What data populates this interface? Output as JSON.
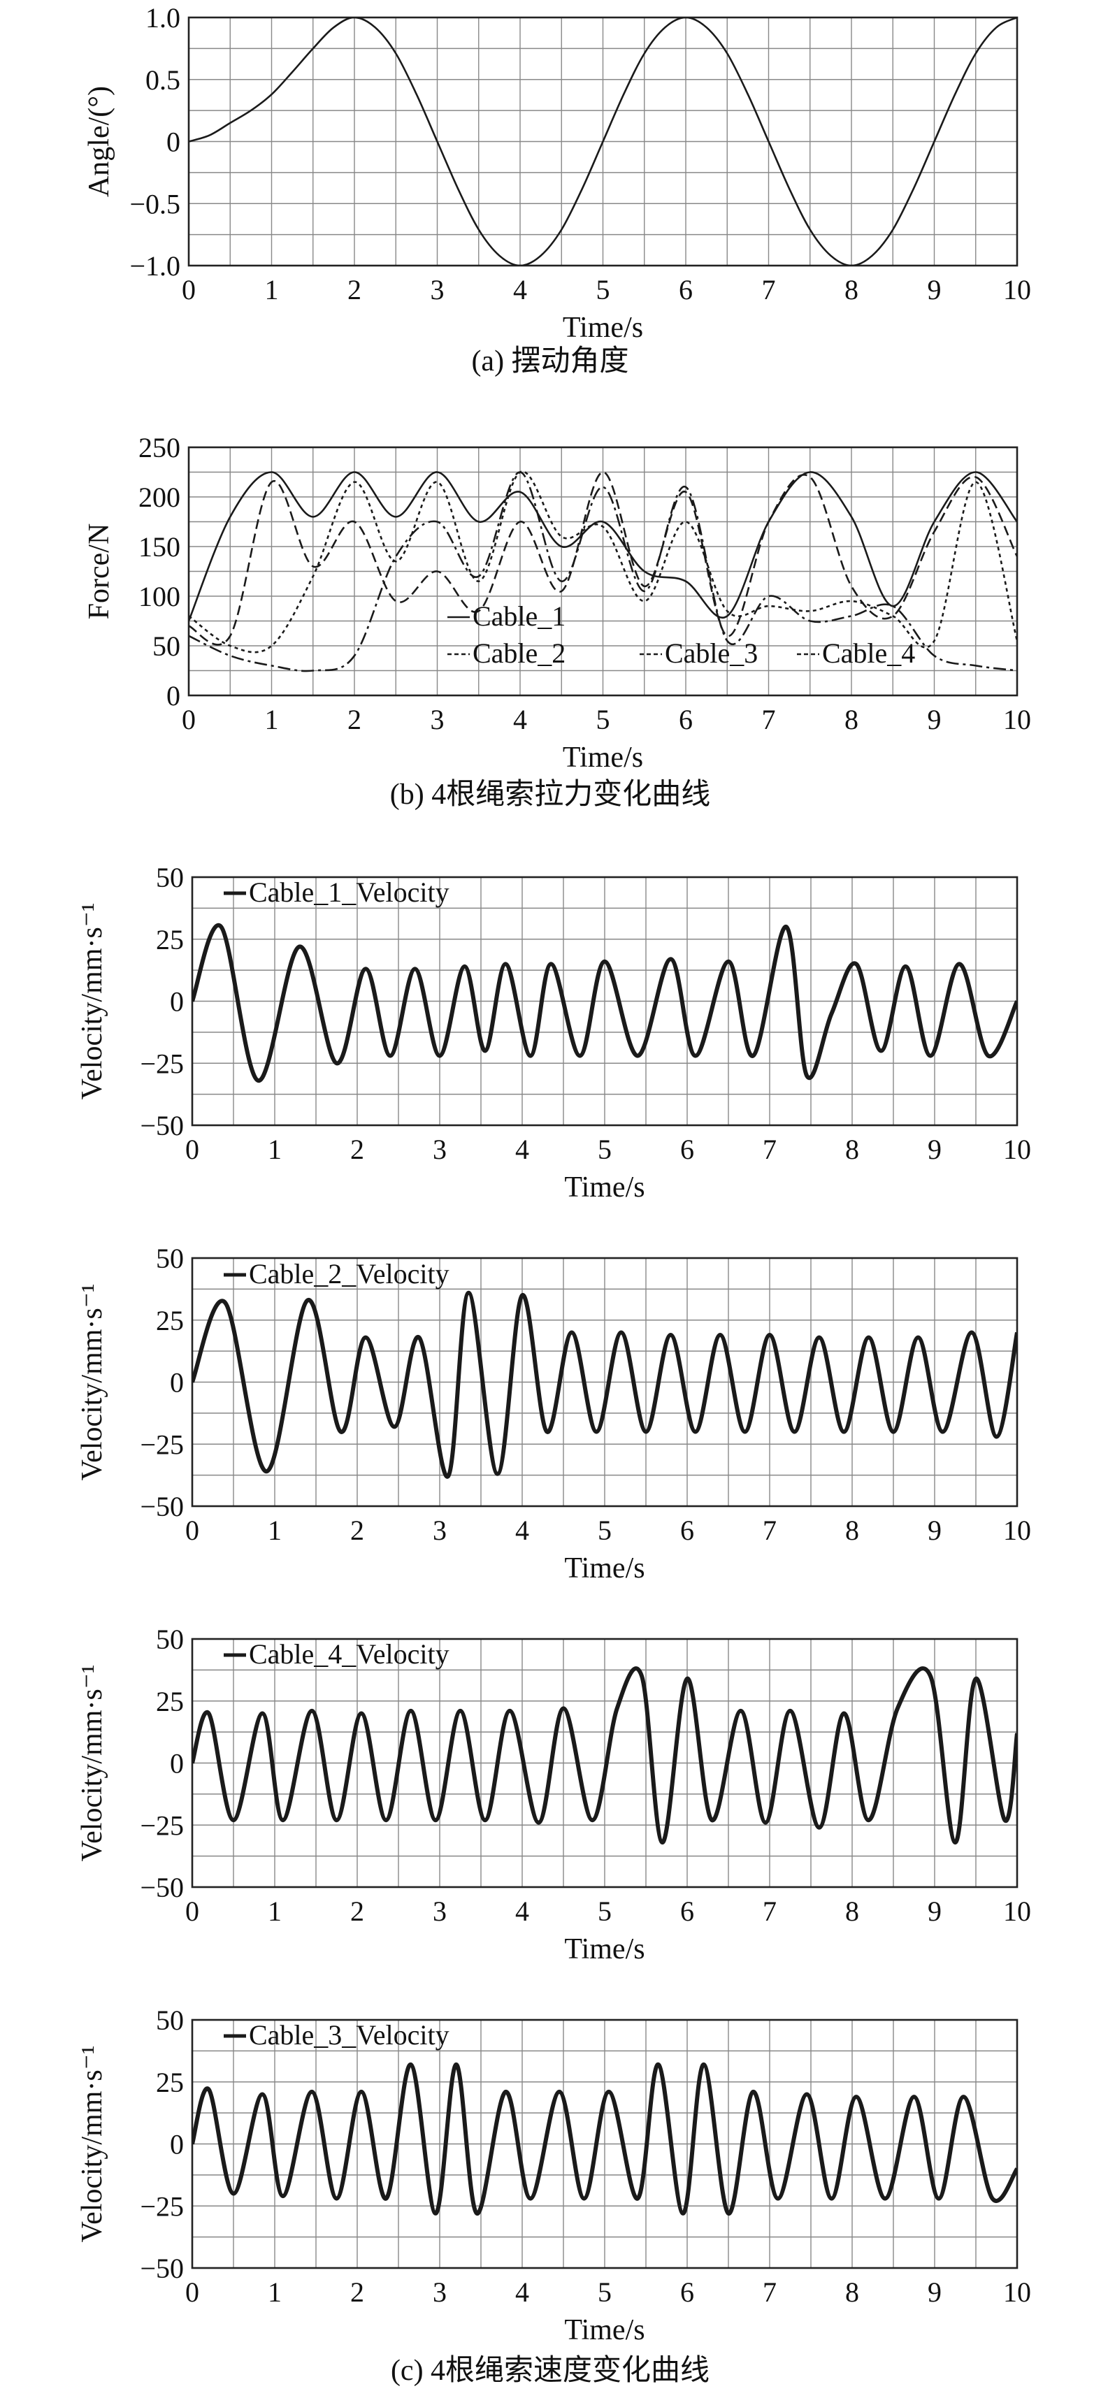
{
  "chart_data": [
    {
      "id": "a",
      "type": "line",
      "caption": "(a) 摆动角度",
      "xlabel": "Time/s",
      "ylabel": "Angle/(°)",
      "xlim": [
        0,
        10
      ],
      "ylim": [
        -1.0,
        1.0
      ],
      "xticks": [
        "0",
        "1",
        "2",
        "3",
        "4",
        "5",
        "6",
        "7",
        "8",
        "9",
        "10"
      ],
      "yticks": [
        "1.0",
        "0.5",
        "0",
        "−0.5",
        "−1.0"
      ],
      "grid": true,
      "series": [
        {
          "x": [
            0,
            0.25,
            0.5,
            0.75,
            1,
            1.25,
            1.5,
            1.75,
            2,
            2.25,
            2.5,
            2.75,
            3,
            3.25,
            3.5,
            3.75,
            4,
            4.25,
            4.5,
            4.75,
            5,
            5.25,
            5.5,
            5.75,
            6,
            6.25,
            6.5,
            6.75,
            7,
            7.25,
            7.5,
            7.75,
            8,
            8.25,
            8.5,
            8.75,
            9,
            9.25,
            9.5,
            9.75,
            10
          ],
          "y": [
            0,
            0.05,
            0.15,
            0.25,
            0.38,
            0.56,
            0.75,
            0.92,
            1.0,
            0.92,
            0.71,
            0.38,
            0,
            -0.38,
            -0.71,
            -0.92,
            -1.0,
            -0.92,
            -0.71,
            -0.38,
            0,
            0.38,
            0.71,
            0.92,
            1.0,
            0.92,
            0.71,
            0.38,
            0,
            -0.38,
            -0.71,
            -0.92,
            -1.0,
            -0.92,
            -0.71,
            -0.38,
            0,
            0.38,
            0.71,
            0.92,
            1.0
          ]
        }
      ]
    },
    {
      "id": "b",
      "type": "line",
      "caption": "(b) 4根绳索拉力变化曲线",
      "xlabel": "Time/s",
      "ylabel": "Force/N",
      "xlim": [
        0,
        10
      ],
      "ylim": [
        0,
        250
      ],
      "xticks": [
        "0",
        "1",
        "2",
        "3",
        "4",
        "5",
        "6",
        "7",
        "8",
        "9",
        "10"
      ],
      "yticks": [
        "250",
        "200",
        "150",
        "100",
        "50",
        "0"
      ],
      "grid": true,
      "legend": [
        "Cable_1",
        "Cable_2",
        "Cable_3",
        "Cable_4"
      ],
      "series": [
        {
          "name": "Cable_1",
          "x": [
            0,
            0.5,
            1,
            1.5,
            2,
            2.5,
            3,
            3.5,
            4,
            4.5,
            5,
            5.5,
            6,
            6.5,
            7,
            7.5,
            8,
            8.5,
            9,
            9.5,
            10
          ],
          "y": [
            75,
            180,
            225,
            180,
            225,
            180,
            225,
            175,
            205,
            150,
            175,
            125,
            115,
            80,
            175,
            225,
            180,
            90,
            175,
            225,
            175
          ]
        },
        {
          "name": "Cable_2",
          "x": [
            0,
            0.5,
            1,
            1.5,
            2,
            2.5,
            3,
            3.5,
            4,
            4.5,
            5,
            5.5,
            6,
            6.5,
            7,
            7.5,
            8,
            8.5,
            9,
            9.5,
            10
          ],
          "y": [
            70,
            60,
            215,
            130,
            175,
            95,
            125,
            85,
            175,
            105,
            225,
            110,
            205,
            60,
            175,
            220,
            110,
            80,
            165,
            220,
            140
          ]
        },
        {
          "name": "Cable_3",
          "x": [
            0,
            0.5,
            1,
            1.5,
            2,
            2.5,
            3,
            3.5,
            4,
            4.5,
            5,
            5.5,
            6,
            6.5,
            7,
            7.5,
            8,
            8.5,
            9,
            9.5,
            10
          ],
          "y": [
            80,
            50,
            50,
            120,
            215,
            135,
            215,
            115,
            225,
            160,
            170,
            95,
            175,
            85,
            90,
            85,
            95,
            80,
            55,
            215,
            55
          ]
        },
        {
          "name": "Cable_4",
          "x": [
            0,
            0.5,
            1,
            1.5,
            2,
            2.5,
            3,
            3.5,
            4,
            4.5,
            5,
            5.5,
            6,
            6.5,
            7,
            7.5,
            8,
            8.5,
            9,
            9.5,
            10
          ],
          "y": [
            60,
            40,
            30,
            25,
            40,
            140,
            175,
            120,
            225,
            115,
            210,
            105,
            210,
            55,
            100,
            75,
            80,
            90,
            40,
            30,
            25
          ]
        }
      ]
    },
    {
      "id": "c1",
      "type": "line",
      "xlabel": "Time/s",
      "ylabel": "Velocity/mm·s⁻¹",
      "xlim": [
        0,
        10
      ],
      "ylim": [
        -50,
        50
      ],
      "xticks": [
        "0",
        "1",
        "2",
        "3",
        "4",
        "5",
        "6",
        "7",
        "8",
        "9",
        "10"
      ],
      "yticks": [
        "50",
        "25",
        "0",
        "−25",
        "−50"
      ],
      "grid": true,
      "legend": [
        "Cable_1_Velocity"
      ],
      "series": [
        {
          "name": "Cable_1_Velocity",
          "x": [
            0,
            0.35,
            0.8,
            1.3,
            1.75,
            2.1,
            2.4,
            2.7,
            3.0,
            3.3,
            3.55,
            3.8,
            4.1,
            4.35,
            4.7,
            5.0,
            5.4,
            5.8,
            6.1,
            6.5,
            6.8,
            7.2,
            7.45,
            7.75,
            8.05,
            8.35,
            8.65,
            8.95,
            9.3,
            9.65,
            10
          ],
          "y": [
            0,
            30,
            -32,
            22,
            -25,
            13,
            -22,
            13,
            -22,
            14,
            -20,
            15,
            -22,
            15,
            -22,
            16,
            -22,
            17,
            -22,
            16,
            -22,
            30,
            -30,
            -5,
            15,
            -20,
            14,
            -22,
            15,
            -22,
            0
          ]
        }
      ]
    },
    {
      "id": "c2",
      "type": "line",
      "caption": "",
      "xlabel": "Time/s",
      "ylabel": "Velocity/mm·s⁻¹",
      "xlim": [
        0,
        10
      ],
      "ylim": [
        -50,
        50
      ],
      "xticks": [
        "0",
        "1",
        "2",
        "3",
        "4",
        "5",
        "6",
        "7",
        "8",
        "9",
        "10"
      ],
      "yticks": [
        "50",
        "25",
        "0",
        "−25",
        "−50"
      ],
      "grid": true,
      "legend": [
        "Cable_2_Velocity"
      ],
      "series": [
        {
          "name": "Cable_2_Velocity",
          "x": [
            0,
            0.4,
            0.9,
            1.4,
            1.8,
            2.1,
            2.45,
            2.75,
            3.1,
            3.35,
            3.7,
            4.0,
            4.3,
            4.6,
            4.9,
            5.2,
            5.5,
            5.8,
            6.1,
            6.4,
            6.7,
            7.0,
            7.3,
            7.6,
            7.9,
            8.2,
            8.5,
            8.8,
            9.1,
            9.45,
            9.75,
            10
          ],
          "y": [
            0,
            32,
            -36,
            33,
            -20,
            18,
            -18,
            18,
            -38,
            36,
            -37,
            35,
            -20,
            20,
            -20,
            20,
            -20,
            19,
            -20,
            19,
            -20,
            19,
            -20,
            18,
            -20,
            18,
            -20,
            18,
            -20,
            20,
            -22,
            20
          ]
        }
      ]
    },
    {
      "id": "c3",
      "type": "line",
      "xlabel": "Time/s",
      "ylabel": "Velocity/mm·s⁻¹",
      "xlim": [
        0,
        10
      ],
      "ylim": [
        -50,
        50
      ],
      "xticks": [
        "0",
        "1",
        "2",
        "3",
        "4",
        "5",
        "6",
        "7",
        "8",
        "9",
        "10"
      ],
      "yticks": [
        "50",
        "25",
        "0",
        "−25",
        "−50"
      ],
      "grid": true,
      "legend": [
        "Cable_4_Velocity"
      ],
      "series": [
        {
          "name": "Cable_4_Velocity",
          "x": [
            0,
            0.2,
            0.5,
            0.85,
            1.1,
            1.45,
            1.75,
            2.05,
            2.35,
            2.65,
            2.95,
            3.25,
            3.55,
            3.85,
            4.2,
            4.5,
            4.85,
            5.15,
            5.45,
            5.7,
            6.0,
            6.3,
            6.65,
            6.95,
            7.25,
            7.6,
            7.9,
            8.2,
            8.55,
            8.95,
            9.25,
            9.5,
            9.85,
            10
          ],
          "y": [
            0,
            20,
            -23,
            20,
            -23,
            21,
            -23,
            20,
            -23,
            21,
            -23,
            21,
            -23,
            21,
            -24,
            22,
            -23,
            22,
            35,
            -32,
            34,
            -23,
            21,
            -24,
            21,
            -26,
            20,
            -23,
            22,
            35,
            -32,
            34,
            -23,
            12
          ]
        }
      ]
    },
    {
      "id": "c4",
      "type": "line",
      "caption": "(c) 4根绳索速度变化曲线",
      "xlabel": "Time/s",
      "ylabel": "Velocity/mm·s⁻¹",
      "xlim": [
        0,
        10
      ],
      "ylim": [
        -50,
        50
      ],
      "xticks": [
        "0",
        "1",
        "2",
        "3",
        "4",
        "5",
        "6",
        "7",
        "8",
        "9",
        "10"
      ],
      "yticks": [
        "50",
        "25",
        "0",
        "−25",
        "−50"
      ],
      "grid": true,
      "legend": [
        "Cable_3_Velocity"
      ],
      "series": [
        {
          "name": "Cable_3_Velocity",
          "x": [
            0,
            0.2,
            0.5,
            0.85,
            1.1,
            1.45,
            1.75,
            2.05,
            2.35,
            2.65,
            2.95,
            3.2,
            3.45,
            3.8,
            4.1,
            4.45,
            4.75,
            5.05,
            5.4,
            5.65,
            5.95,
            6.2,
            6.5,
            6.8,
            7.1,
            7.45,
            7.75,
            8.05,
            8.4,
            8.75,
            9.05,
            9.35,
            9.7,
            10
          ],
          "y": [
            0,
            22,
            -20,
            20,
            -21,
            21,
            -22,
            21,
            -22,
            32,
            -28,
            32,
            -28,
            21,
            -22,
            21,
            -22,
            21,
            -22,
            32,
            -28,
            32,
            -28,
            21,
            -22,
            20,
            -22,
            19,
            -22,
            19,
            -22,
            19,
            -22,
            -10
          ]
        }
      ]
    }
  ]
}
